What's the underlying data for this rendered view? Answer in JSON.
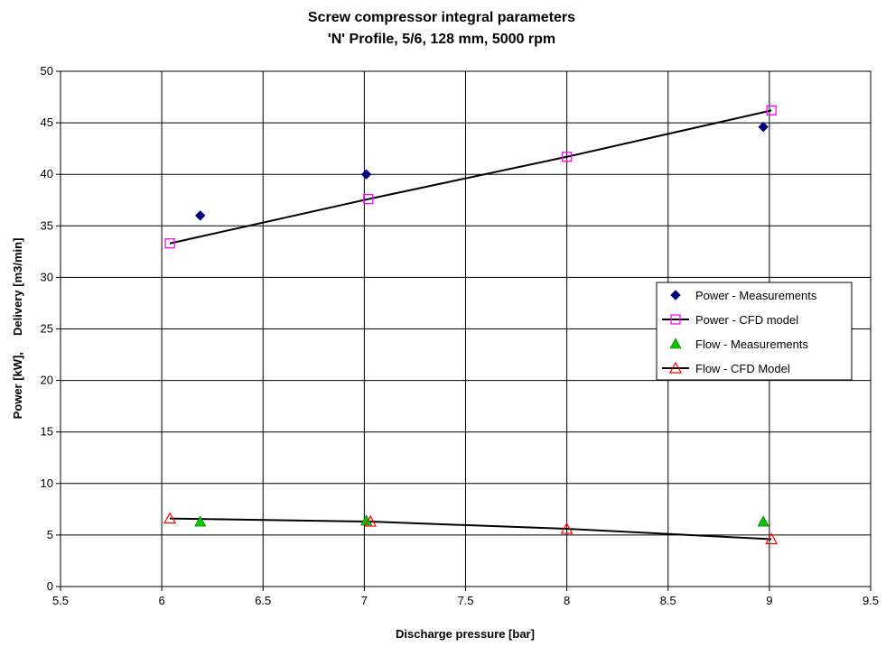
{
  "chart_data": {
    "type": "scatter",
    "title": "Screw compressor integral parameters",
    "subtitle": "'N' Profile, 5/6, 128 mm, 5000 rpm",
    "xlabel": "Discharge pressure [bar]",
    "ylabel": "Power [kW],     Delivery [m3/min]",
    "xlim": [
      5.5,
      9.5
    ],
    "ylim": [
      0,
      50
    ],
    "x_ticks": [
      "5.5",
      "6",
      "6.5",
      "7",
      "7.5",
      "8",
      "8.5",
      "9",
      "9.5"
    ],
    "y_ticks": [
      "0",
      "5",
      "10",
      "15",
      "20",
      "25",
      "30",
      "35",
      "40",
      "45",
      "50"
    ],
    "grid": true,
    "legend_position": "right",
    "series": [
      {
        "name": "Power - Measurements",
        "marker": "diamond-filled",
        "color": "#000080",
        "line": false,
        "points": [
          [
            6.19,
            36.0
          ],
          [
            7.01,
            40.0
          ],
          [
            8.97,
            44.6
          ]
        ]
      },
      {
        "name": "Power - CFD model",
        "marker": "square-open",
        "color": "#ff00ff",
        "line": true,
        "line_color": "#000000",
        "points": [
          [
            6.04,
            33.3
          ],
          [
            7.02,
            37.6
          ],
          [
            8.0,
            41.7
          ],
          [
            9.01,
            46.2
          ]
        ]
      },
      {
        "name": "Flow - Measurements",
        "marker": "triangle-filled",
        "color": "#00cc00",
        "line": false,
        "points": [
          [
            6.19,
            6.3
          ],
          [
            7.01,
            6.4
          ],
          [
            8.97,
            6.3
          ]
        ]
      },
      {
        "name": "Flow - CFD Model",
        "marker": "triangle-open",
        "color": "#ff0000",
        "line": true,
        "line_color": "#000000",
        "points": [
          [
            6.04,
            6.6
          ],
          [
            7.03,
            6.3
          ],
          [
            8.0,
            5.6
          ],
          [
            9.01,
            4.6
          ]
        ]
      }
    ]
  }
}
